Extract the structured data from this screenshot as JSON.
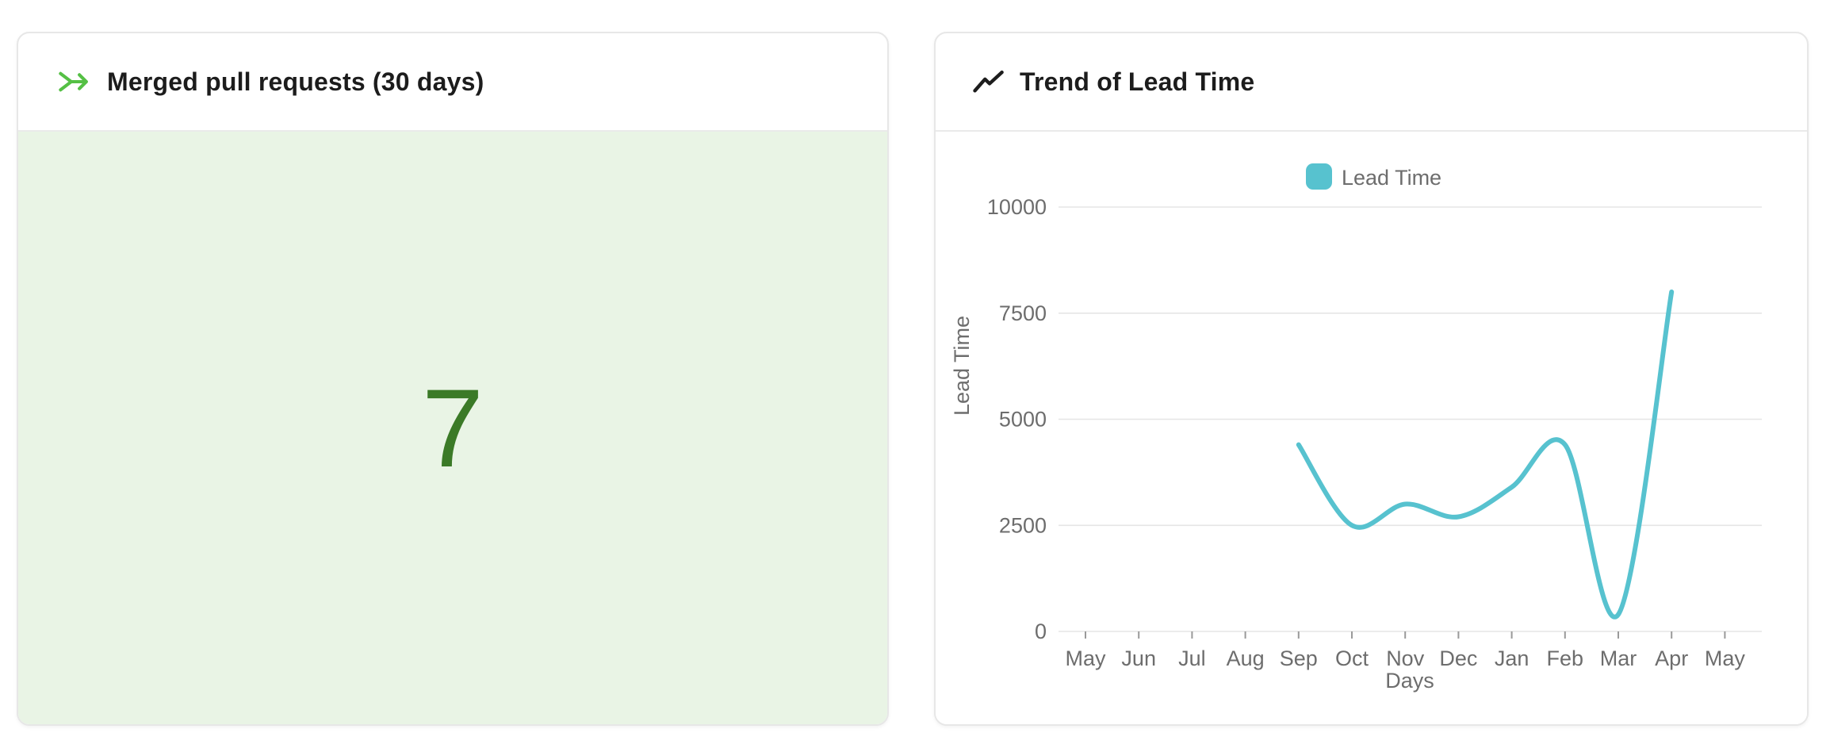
{
  "cards": {
    "merged": {
      "title": "Merged pull requests (30 days)",
      "value": "7",
      "value_color": "#3b7a27",
      "body_background": "#e9f4e5",
      "icon": "git-merge-icon",
      "icon_color": "#55c045"
    },
    "trend": {
      "title": "Trend of Lead Time",
      "icon": "trend-up-icon",
      "icon_color": "#1d1d1d"
    }
  },
  "chart_data": {
    "type": "line",
    "title": "Trend of Lead Time",
    "xlabel": "Days",
    "ylabel": "Lead Time",
    "legend": [
      "Lead Time"
    ],
    "legend_position": "top-center",
    "grid": true,
    "grid_color": "#e5e5e5",
    "axis_text_color": "#6d6d6d",
    "tick_color": "#9a9a9a",
    "x_categories": [
      "May",
      "Jun",
      "Jul",
      "Aug",
      "Sep",
      "Oct",
      "Nov",
      "Dec",
      "Jan",
      "Feb",
      "Mar",
      "Apr",
      "May"
    ],
    "ylim": [
      0,
      10000
    ],
    "y_ticks": [
      0,
      2500,
      5000,
      7500,
      10000
    ],
    "series": [
      {
        "name": "Lead Time",
        "color": "#57c2cf",
        "smooth": true,
        "points": [
          {
            "x": "Sep",
            "y": 4400
          },
          {
            "x": "Oct",
            "y": 2500
          },
          {
            "x": "Nov",
            "y": 3000
          },
          {
            "x": "Dec",
            "y": 2700
          },
          {
            "x": "Jan",
            "y": 3400
          },
          {
            "x": "Feb",
            "y": 4400
          },
          {
            "x": "Mar",
            "y": 400
          },
          {
            "x": "Apr",
            "y": 8000
          }
        ]
      }
    ]
  }
}
